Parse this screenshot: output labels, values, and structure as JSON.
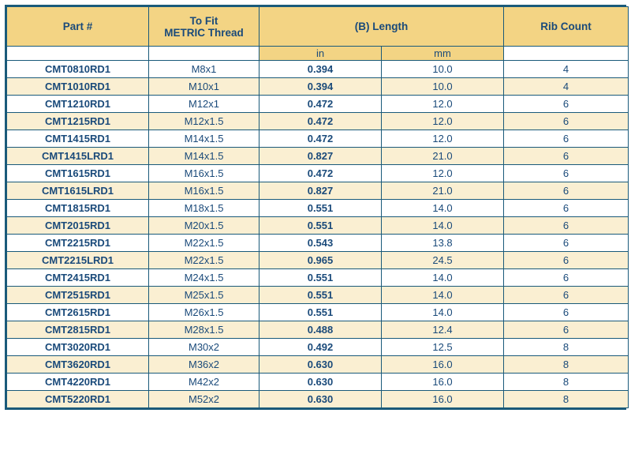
{
  "headers": {
    "part": "Part #",
    "thread": "To Fit\nMETRIC Thread",
    "length": "(B) Length",
    "rib": "Rib Count",
    "sub_in": "in",
    "sub_mm": "mm"
  },
  "colors": {
    "border": "#1a5a7a",
    "header_bg": "#f3d484",
    "text": "#1a4a7a",
    "row_odd_bg": "#faefd2",
    "row_even_bg": "#ffffff"
  },
  "rows": [
    {
      "part": "CMT0810RD1",
      "thread": "M8x1",
      "in": "0.394",
      "mm": "10.0",
      "rib": "4"
    },
    {
      "part": "CMT1010RD1",
      "thread": "M10x1",
      "in": "0.394",
      "mm": "10.0",
      "rib": "4"
    },
    {
      "part": "CMT1210RD1",
      "thread": "M12x1",
      "in": "0.472",
      "mm": "12.0",
      "rib": "6"
    },
    {
      "part": "CMT1215RD1",
      "thread": "M12x1.5",
      "in": "0.472",
      "mm": "12.0",
      "rib": "6"
    },
    {
      "part": "CMT1415RD1",
      "thread": "M14x1.5",
      "in": "0.472",
      "mm": "12.0",
      "rib": "6"
    },
    {
      "part": "CMT1415LRD1",
      "thread": "M14x1.5",
      "in": "0.827",
      "mm": "21.0",
      "rib": "6"
    },
    {
      "part": "CMT1615RD1",
      "thread": "M16x1.5",
      "in": "0.472",
      "mm": "12.0",
      "rib": "6"
    },
    {
      "part": "CMT1615LRD1",
      "thread": "M16x1.5",
      "in": "0.827",
      "mm": "21.0",
      "rib": "6"
    },
    {
      "part": "CMT1815RD1",
      "thread": "M18x1.5",
      "in": "0.551",
      "mm": "14.0",
      "rib": "6"
    },
    {
      "part": "CMT2015RD1",
      "thread": "M20x1.5",
      "in": "0.551",
      "mm": "14.0",
      "rib": "6"
    },
    {
      "part": "CMT2215RD1",
      "thread": "M22x1.5",
      "in": "0.543",
      "mm": "13.8",
      "rib": "6"
    },
    {
      "part": "CMT2215LRD1",
      "thread": "M22x1.5",
      "in": "0.965",
      "mm": "24.5",
      "rib": "6"
    },
    {
      "part": "CMT2415RD1",
      "thread": "M24x1.5",
      "in": "0.551",
      "mm": "14.0",
      "rib": "6"
    },
    {
      "part": "CMT2515RD1",
      "thread": "M25x1.5",
      "in": "0.551",
      "mm": "14.0",
      "rib": "6"
    },
    {
      "part": "CMT2615RD1",
      "thread": "M26x1.5",
      "in": "0.551",
      "mm": "14.0",
      "rib": "6"
    },
    {
      "part": "CMT2815RD1",
      "thread": "M28x1.5",
      "in": "0.488",
      "mm": "12.4",
      "rib": "6"
    },
    {
      "part": "CMT3020RD1",
      "thread": "M30x2",
      "in": "0.492",
      "mm": "12.5",
      "rib": "8"
    },
    {
      "part": "CMT3620RD1",
      "thread": "M36x2",
      "in": "0.630",
      "mm": "16.0",
      "rib": "8"
    },
    {
      "part": "CMT4220RD1",
      "thread": "M42x2",
      "in": "0.630",
      "mm": "16.0",
      "rib": "8"
    },
    {
      "part": "CMT5220RD1",
      "thread": "M52x2",
      "in": "0.630",
      "mm": "16.0",
      "rib": "8"
    }
  ]
}
